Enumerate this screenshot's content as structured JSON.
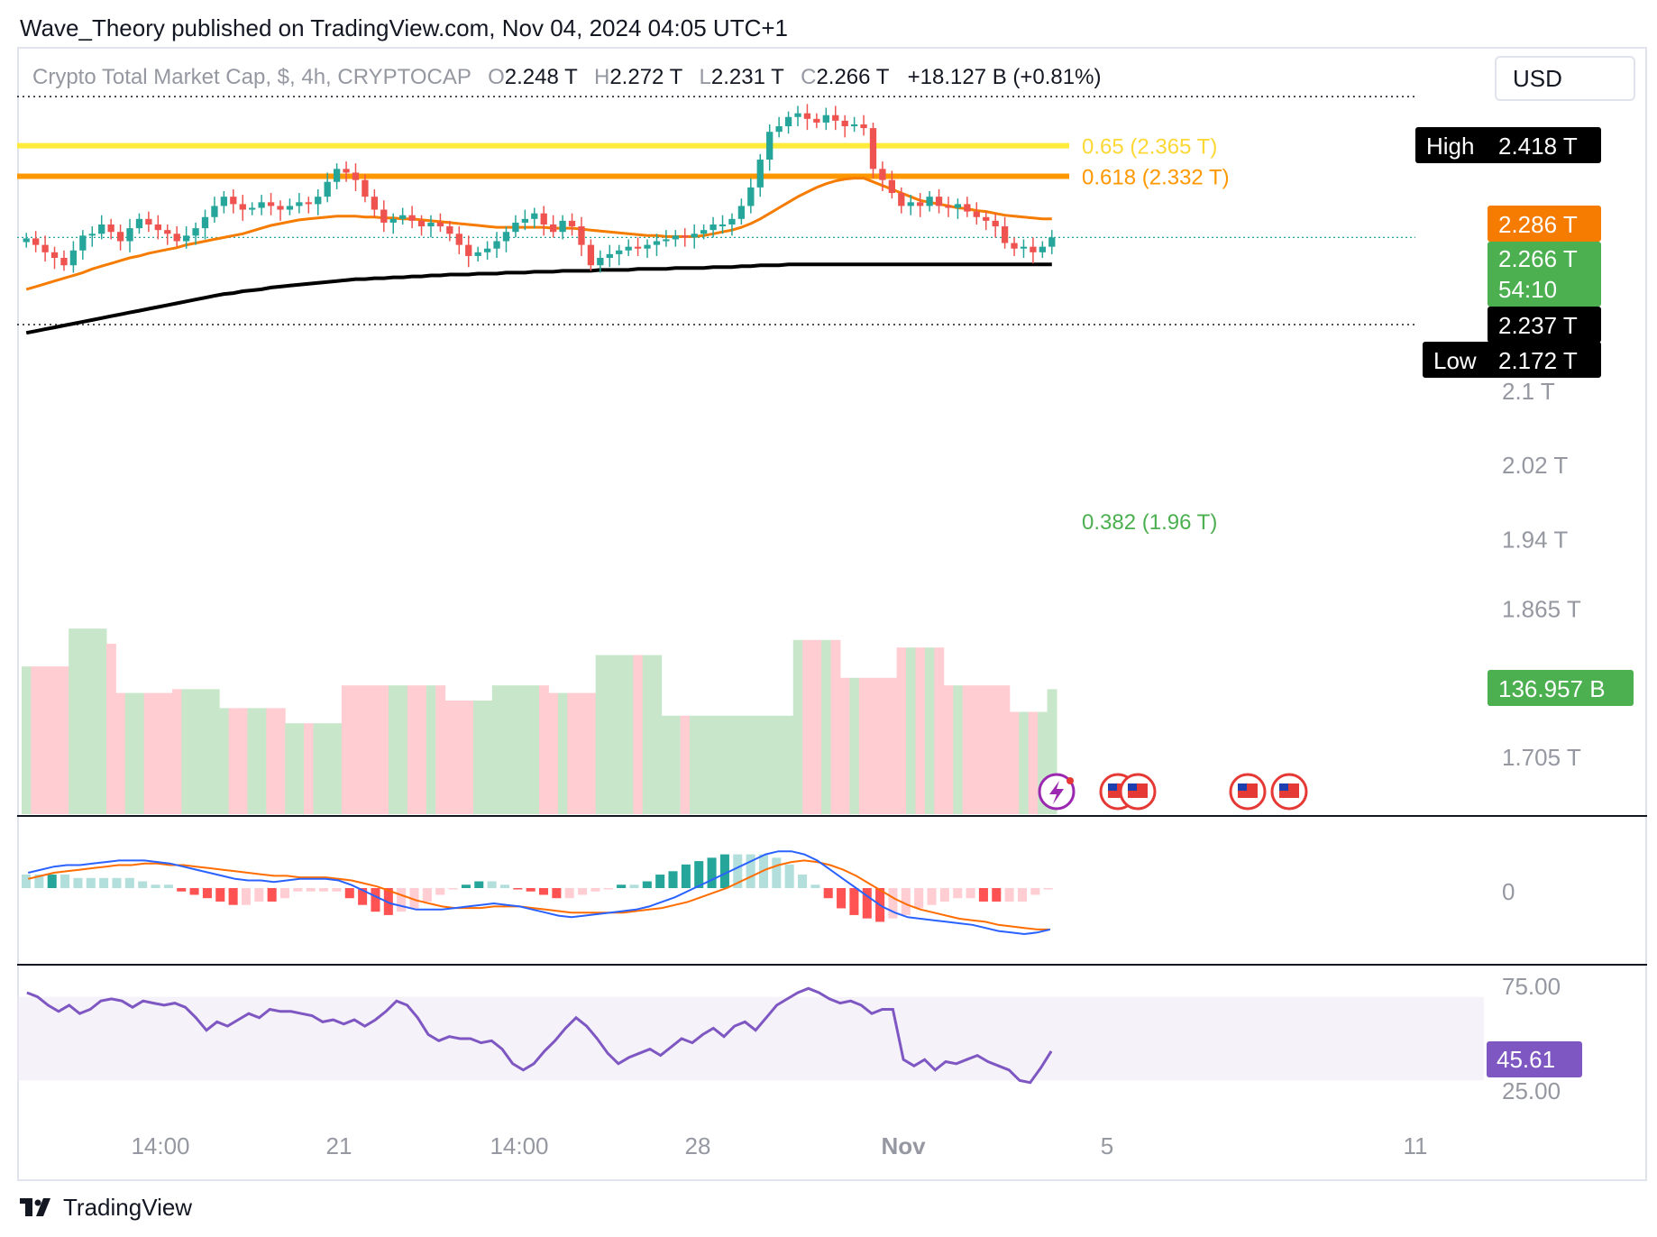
{
  "caption": "Wave_Theory published on TradingView.com, Nov 04, 2024 04:05 UTC+1",
  "legend": {
    "symbol": "Crypto Total Market Cap, $, 4h, CRYPTOCAP",
    "o_label": "O",
    "o": "2.248 T",
    "h_label": "H",
    "h": "2.272 T",
    "l_label": "L",
    "l": "2.231 T",
    "c_label": "C",
    "c": "2.266 T",
    "change": "+18.127 B (+0.81%)"
  },
  "currency": "USD",
  "brand": "TradingView",
  "colors": {
    "up": "#26a69a",
    "down": "#ef5350",
    "ema50": "#f57c00",
    "ema200": "#000000",
    "fib065": "#ffeb3b",
    "fib0618": "#ff9800",
    "fib0382": "#4caf50",
    "rsi": "#7e57c2",
    "macd": "#2962ff",
    "signal": "#ff6d00",
    "vol_up": "#c8e6c9",
    "vol_down": "#ffcdd2"
  },
  "chart_data": {
    "type": "candlestick",
    "price_scale": {
      "ticks": [
        "2.1 T",
        "2.02 T",
        "1.94 T",
        "1.865 T",
        "1.705 T"
      ],
      "tick_values": [
        2.1,
        2.02,
        1.94,
        1.865,
        1.705
      ]
    },
    "x_labels": [
      "14:00",
      "21",
      "14:00",
      "28",
      "Nov",
      "5",
      "11"
    ],
    "price_labels": {
      "high_label": "High",
      "high": "2.418 T",
      "ema_label": "2.286 T",
      "last": "2.266 T",
      "countdown": "54:10",
      "ema200_label": "2.237 T",
      "low_label": "Low",
      "low": "2.172 T",
      "volume": "136.957 B"
    },
    "fib": [
      {
        "label": "0.65 (2.365 T)",
        "value": 2.365
      },
      {
        "label": "0.618 (2.332 T)",
        "value": 2.332
      },
      {
        "label": "0.382 (1.96 T)",
        "value": 1.96
      }
    ],
    "close": [
      2.265,
      2.258,
      2.25,
      2.244,
      2.236,
      2.252,
      2.268,
      2.27,
      2.28,
      2.272,
      2.262,
      2.276,
      2.286,
      2.28,
      2.274,
      2.27,
      2.262,
      2.268,
      2.276,
      2.288,
      2.3,
      2.31,
      2.302,
      2.296,
      2.298,
      2.304,
      2.3,
      2.296,
      2.3,
      2.304,
      2.302,
      2.31,
      2.326,
      2.34,
      2.336,
      2.328,
      2.31,
      2.296,
      2.282,
      2.286,
      2.29,
      2.284,
      2.278,
      2.282,
      2.278,
      2.27,
      2.258,
      2.246,
      2.25,
      2.254,
      2.262,
      2.272,
      2.282,
      2.286,
      2.292,
      2.28,
      2.272,
      2.284,
      2.278,
      2.258,
      2.236,
      2.244,
      2.248,
      2.252,
      2.256,
      2.254,
      2.258,
      2.262,
      2.264,
      2.268,
      2.266,
      2.27,
      2.274,
      2.28,
      2.28,
      2.286,
      2.3,
      2.32,
      2.35,
      2.38,
      2.386,
      2.396,
      2.4,
      2.394,
      2.39,
      2.398,
      2.392,
      2.386,
      2.388,
      2.384,
      2.34,
      2.328,
      2.314,
      2.3,
      2.304,
      2.3,
      2.31,
      2.3,
      2.298,
      2.302,
      2.294,
      2.288,
      2.284,
      2.278,
      2.26,
      2.254,
      2.256,
      2.25,
      2.256,
      2.266
    ],
    "ema50": [
      2.21,
      2.213,
      2.216,
      2.219,
      2.222,
      2.225,
      2.228,
      2.232,
      2.235,
      2.238,
      2.241,
      2.244,
      2.246,
      2.249,
      2.251,
      2.253,
      2.255,
      2.258,
      2.26,
      2.262,
      2.264,
      2.266,
      2.268,
      2.27,
      2.273,
      2.276,
      2.279,
      2.281,
      2.283,
      2.285,
      2.286,
      2.287,
      2.288,
      2.289,
      2.289,
      2.289,
      2.288,
      2.288,
      2.287,
      2.287,
      2.286,
      2.286,
      2.285,
      2.284,
      2.283,
      2.282,
      2.281,
      2.28,
      2.279,
      2.278,
      2.277,
      2.277,
      2.277,
      2.277,
      2.277,
      2.277,
      2.276,
      2.276,
      2.276,
      2.275,
      2.274,
      2.273,
      2.272,
      2.271,
      2.27,
      2.269,
      2.268,
      2.268,
      2.267,
      2.267,
      2.267,
      2.267,
      2.268,
      2.27,
      2.272,
      2.274,
      2.277,
      2.281,
      2.286,
      2.292,
      2.298,
      2.304,
      2.31,
      2.315,
      2.32,
      2.324,
      2.327,
      2.329,
      2.33,
      2.33,
      2.326,
      2.322,
      2.318,
      2.314,
      2.31,
      2.306,
      2.304,
      2.302,
      2.3,
      2.298,
      2.297,
      2.295,
      2.294,
      2.292,
      2.29,
      2.289,
      2.288,
      2.287,
      2.286,
      2.286
    ],
    "ema200": [
      2.163,
      2.165,
      2.167,
      2.169,
      2.171,
      2.173,
      2.175,
      2.177,
      2.179,
      2.181,
      2.183,
      2.185,
      2.187,
      2.189,
      2.191,
      2.193,
      2.195,
      2.197,
      2.199,
      2.201,
      2.203,
      2.205,
      2.206,
      2.208,
      2.209,
      2.21,
      2.212,
      2.213,
      2.214,
      2.215,
      2.216,
      2.217,
      2.218,
      2.219,
      2.22,
      2.221,
      2.221,
      2.222,
      2.222,
      2.223,
      2.223,
      2.224,
      2.224,
      2.225,
      2.225,
      2.226,
      2.226,
      2.226,
      2.227,
      2.227,
      2.227,
      2.228,
      2.228,
      2.228,
      2.229,
      2.229,
      2.229,
      2.23,
      2.23,
      2.23,
      2.23,
      2.231,
      2.231,
      2.231,
      2.231,
      2.232,
      2.232,
      2.232,
      2.232,
      2.233,
      2.233,
      2.233,
      2.233,
      2.234,
      2.234,
      2.234,
      2.235,
      2.235,
      2.236,
      2.236,
      2.236,
      2.237,
      2.237,
      2.237,
      2.237,
      2.237,
      2.237,
      2.237,
      2.237,
      2.237,
      2.237,
      2.237,
      2.237,
      2.237,
      2.237,
      2.237,
      2.237,
      2.237,
      2.237,
      2.237,
      2.237,
      2.237,
      2.237,
      2.237,
      2.237,
      2.237,
      2.237,
      2.237,
      2.237,
      2.237
    ],
    "volume_heights": [
      0.78,
      0.78,
      0.78,
      0.78,
      0.78,
      0.98,
      0.98,
      0.98,
      0.98,
      0.9,
      0.64,
      0.64,
      0.64,
      0.64,
      0.64,
      0.64,
      0.66,
      0.66,
      0.66,
      0.66,
      0.66,
      0.56,
      0.56,
      0.56,
      0.56,
      0.56,
      0.56,
      0.56,
      0.48,
      0.48,
      0.48,
      0.48,
      0.48,
      0.48,
      0.68,
      0.68,
      0.68,
      0.68,
      0.68,
      0.68,
      0.68,
      0.68,
      0.68,
      0.68,
      0.68,
      0.6,
      0.6,
      0.6,
      0.6,
      0.6,
      0.68,
      0.68,
      0.68,
      0.68,
      0.68,
      0.68,
      0.64,
      0.64,
      0.64,
      0.64,
      0.64,
      0.84,
      0.84,
      0.84,
      0.84,
      0.84,
      0.84,
      0.84,
      0.52,
      0.52,
      0.52,
      0.52,
      0.52,
      0.52,
      0.52,
      0.52,
      0.52,
      0.52,
      0.52,
      0.52,
      0.52,
      0.52,
      0.92,
      0.92,
      0.92,
      0.92,
      0.92,
      0.72,
      0.72,
      0.72,
      0.72,
      0.72,
      0.72,
      0.88,
      0.88,
      0.88,
      0.88,
      0.88,
      0.68,
      0.68,
      0.68,
      0.68,
      0.68,
      0.68,
      0.68,
      0.54,
      0.54,
      0.54,
      0.54,
      0.66
    ],
    "macd": {
      "zero_label": "0",
      "macd": [
        0.1,
        0.12,
        0.14,
        0.15,
        0.15,
        0.16,
        0.17,
        0.18,
        0.18,
        0.18,
        0.17,
        0.16,
        0.14,
        0.12,
        0.1,
        0.08,
        0.06,
        0.05,
        0.05,
        0.04,
        0.05,
        0.06,
        0.06,
        0.06,
        0.05,
        0.02,
        -0.02,
        -0.06,
        -0.1,
        -0.12,
        -0.14,
        -0.14,
        -0.14,
        -0.13,
        -0.12,
        -0.11,
        -0.1,
        -0.11,
        -0.12,
        -0.14,
        -0.16,
        -0.18,
        -0.19,
        -0.18,
        -0.17,
        -0.16,
        -0.15,
        -0.14,
        -0.12,
        -0.09,
        -0.06,
        -0.02,
        0.02,
        0.06,
        0.1,
        0.14,
        0.18,
        0.22,
        0.24,
        0.24,
        0.22,
        0.18,
        0.12,
        0.06,
        0.0,
        -0.06,
        -0.12,
        -0.16,
        -0.19,
        -0.2,
        -0.21,
        -0.22,
        -0.23,
        -0.24,
        -0.26,
        -0.28,
        -0.29,
        -0.3,
        -0.29,
        -0.27
      ],
      "signal": [
        0.06,
        0.08,
        0.1,
        0.11,
        0.12,
        0.13,
        0.14,
        0.15,
        0.15,
        0.16,
        0.16,
        0.15,
        0.15,
        0.14,
        0.13,
        0.12,
        0.11,
        0.1,
        0.09,
        0.08,
        0.08,
        0.07,
        0.07,
        0.07,
        0.06,
        0.05,
        0.03,
        0.01,
        -0.02,
        -0.05,
        -0.08,
        -0.1,
        -0.12,
        -0.13,
        -0.13,
        -0.13,
        -0.12,
        -0.12,
        -0.12,
        -0.13,
        -0.14,
        -0.15,
        -0.16,
        -0.16,
        -0.16,
        -0.16,
        -0.16,
        -0.15,
        -0.14,
        -0.13,
        -0.11,
        -0.09,
        -0.06,
        -0.03,
        0.0,
        0.04,
        0.08,
        0.12,
        0.15,
        0.17,
        0.18,
        0.17,
        0.15,
        0.12,
        0.08,
        0.03,
        -0.02,
        -0.07,
        -0.11,
        -0.14,
        -0.16,
        -0.18,
        -0.2,
        -0.21,
        -0.22,
        -0.24,
        -0.25,
        -0.26,
        -0.27,
        -0.27
      ]
    },
    "rsi": {
      "ticks": [
        "75.00",
        "25.00"
      ],
      "upper": 70,
      "lower": 30,
      "last": "45.61",
      "values": [
        72,
        70,
        66,
        63,
        66,
        62,
        64,
        68,
        69,
        68,
        65,
        68,
        67,
        66,
        67,
        65,
        60,
        54,
        58,
        56,
        59,
        62,
        60,
        64,
        63,
        63,
        62,
        61,
        58,
        59,
        57,
        59,
        56,
        59,
        63,
        68,
        66,
        60,
        52,
        49,
        51,
        50,
        50,
        48,
        49,
        45,
        38,
        35,
        38,
        44,
        49,
        55,
        60,
        56,
        50,
        43,
        38,
        41,
        43,
        45,
        42,
        46,
        50,
        48,
        52,
        55,
        51,
        56,
        58,
        54,
        60,
        66,
        69,
        72,
        74,
        72,
        69,
        67,
        68,
        66,
        62,
        64,
        64,
        40,
        37,
        40,
        35,
        39,
        38,
        40,
        42,
        39,
        37,
        35,
        30,
        29,
        36,
        44
      ]
    }
  }
}
